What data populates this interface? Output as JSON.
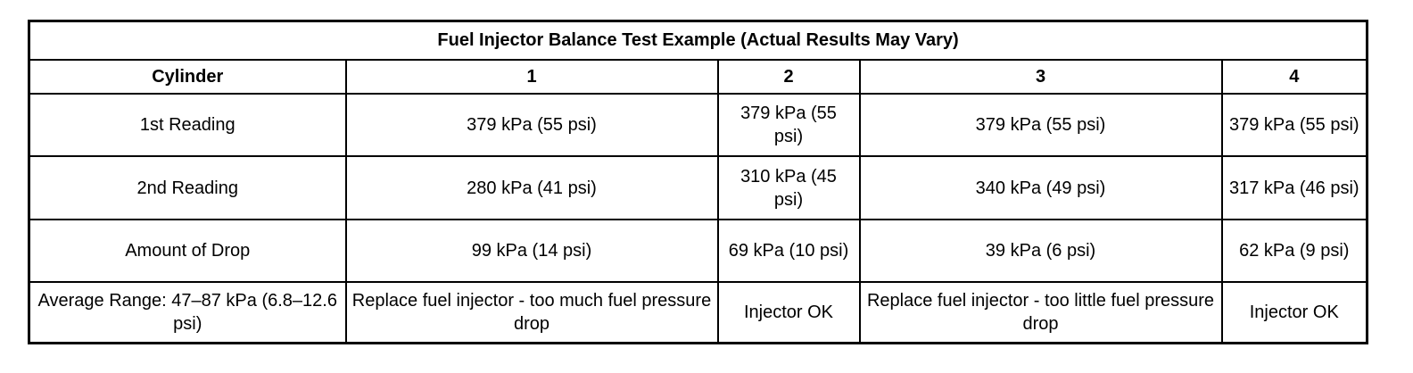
{
  "table": {
    "title": "Fuel Injector Balance Test Example (Actual Results May Vary)",
    "headers": [
      "Cylinder",
      "1",
      "2",
      "3",
      "4"
    ],
    "rows": [
      [
        "1st Reading",
        "379 kPa (55 psi)",
        "379 kPa (55 psi)",
        "379 kPa (55 psi)",
        "379 kPa (55 psi)"
      ],
      [
        "2nd Reading",
        "280 kPa (41 psi)",
        "310 kPa (45 psi)",
        "340 kPa (49 psi)",
        "317 kPa (46 psi)"
      ],
      [
        "Amount of Drop",
        "99 kPa (14 psi)",
        "69 kPa (10 psi)",
        "39 kPa (6 psi)",
        "62 kPa (9 psi)"
      ],
      [
        "Average Range: 47–87 kPa (6.8–12.6 psi)",
        "Replace fuel injector - too much fuel pressure drop",
        "Injector OK",
        "Replace fuel injector - too little fuel pressure drop",
        "Injector OK"
      ]
    ]
  }
}
